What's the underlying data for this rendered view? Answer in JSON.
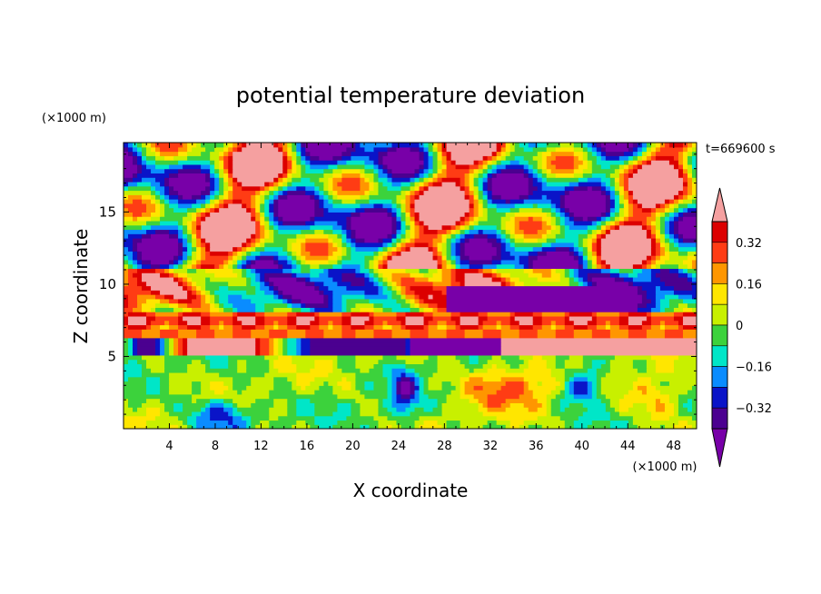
{
  "chart_data": {
    "type": "heatmap",
    "title": "potential temperature deviation",
    "xlabel": "X coordinate",
    "ylabel": "Z coordinate",
    "x_unit": "(×1000 m)",
    "y_unit": "(×1000 m)",
    "time_label": "t=669600 s",
    "xlim": [
      0,
      50
    ],
    "ylim": [
      0,
      19.8
    ],
    "x_ticks": [
      "4",
      "8",
      "12",
      "16",
      "20",
      "24",
      "28",
      "32",
      "36",
      "40",
      "44",
      "48"
    ],
    "y_ticks": [
      "5",
      "10",
      "15"
    ],
    "colorbar": {
      "levels": [
        -0.4,
        -0.32,
        -0.24,
        -0.16,
        -0.08,
        0,
        0.08,
        0.16,
        0.24,
        0.32,
        0.4
      ],
      "labels": [
        "0.32",
        "0.16",
        "0",
        "−0.16",
        "−0.32"
      ],
      "label_values": [
        0.32,
        0.16,
        0,
        -0.16,
        -0.32
      ],
      "colors": [
        "#7800a8",
        "#4b0090",
        "#0a14c8",
        "#0a8cff",
        "#00e6c8",
        "#3cd23c",
        "#c8f000",
        "#ffe600",
        "#ff9600",
        "#ff3c14",
        "#dc0000",
        "#f5a0a0"
      ],
      "extend": "both"
    }
  }
}
